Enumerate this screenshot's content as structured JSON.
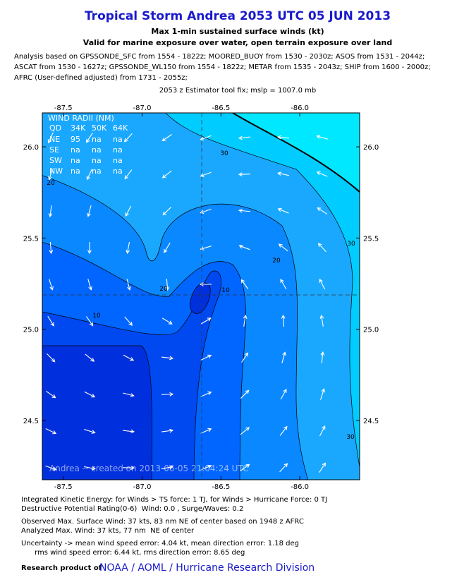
{
  "header": {
    "title": "Tropical Storm Andrea 2053 UTC 05 JUN 2013",
    "subtitle": "Max 1-min sustained surface winds (kt)",
    "validity": "Valid for marine exposure over water, open terrain exposure over land",
    "analysis": [
      "Analysis based on GPSSONDE_SFC from 1554 - 1822z; MOORED_BUOY from 1530 - 2030z; ASOS from 1531 - 2044z;",
      "ASCAT from 1530 - 1627z; GPSSONDE_WL150 from 1554 - 1822z; METAR from 1535 - 2043z; SHIP from 1600 - 2000z;",
      "AFRC (User-defined adjusted) from 1731 - 2055z;"
    ],
    "estimator": "2053 z Estimator tool fix; mslp = 1007.0 mb"
  },
  "map": {
    "xlim": [
      -87.633,
      -85.62
    ],
    "ylim": [
      24.175,
      26.186
    ],
    "xticks": [
      -87.5,
      {
        "value": -87,
        "label": "-87.0"
      },
      -86.5,
      {
        "value": -86,
        "label": "-86.0"
      }
    ],
    "yticks": [
      24.5,
      {
        "value": 25,
        "label": "25.0"
      },
      25.5,
      {
        "value": 26,
        "label": "26.0"
      }
    ],
    "wind_radii": {
      "title": "WIND RADII (NM)",
      "columns": [
        "QD",
        "34K",
        "50K",
        "64K"
      ],
      "rows": [
        [
          "NE",
          "95",
          "na",
          "na"
        ],
        [
          "SE",
          "na",
          "na",
          "na"
        ],
        [
          "SW",
          "na",
          "na",
          "na"
        ],
        [
          "NW",
          "na",
          "na",
          "na"
        ]
      ]
    },
    "contour_labels": [
      "30",
      "20",
      "30",
      "20",
      "20",
      "10",
      "10",
      "30"
    ],
    "watermark": "Andrea -- created on 2013-06-05 21:04:24 UTC"
  },
  "footer": {
    "groups": [
      [
        "Integrated Kinetic Energy: for Winds > TS force: 1 TJ, for Winds > Hurricane Force: 0 TJ",
        "Destructive Potential Rating(0-6)  Wind: 0.0 , Surge/Waves: 0.2"
      ],
      [
        "Observed Max. Surface Wind: 37 kts, 83 nm NE of center based on 1948 z AFRC",
        "Analyzed Max. Wind: 37 kts, 77 nm  NE of center"
      ],
      [
        "Uncertainty -> mean wind speed error: 4.04 kt, mean direction error: 1.18 deg",
        "      rms wind speed error: 6.44 kt, rms direction error: 8.65 deg"
      ]
    ],
    "credit_prefix": "Research product of",
    "credit": "NOAA / AOML / Hurricane Research Division"
  }
}
